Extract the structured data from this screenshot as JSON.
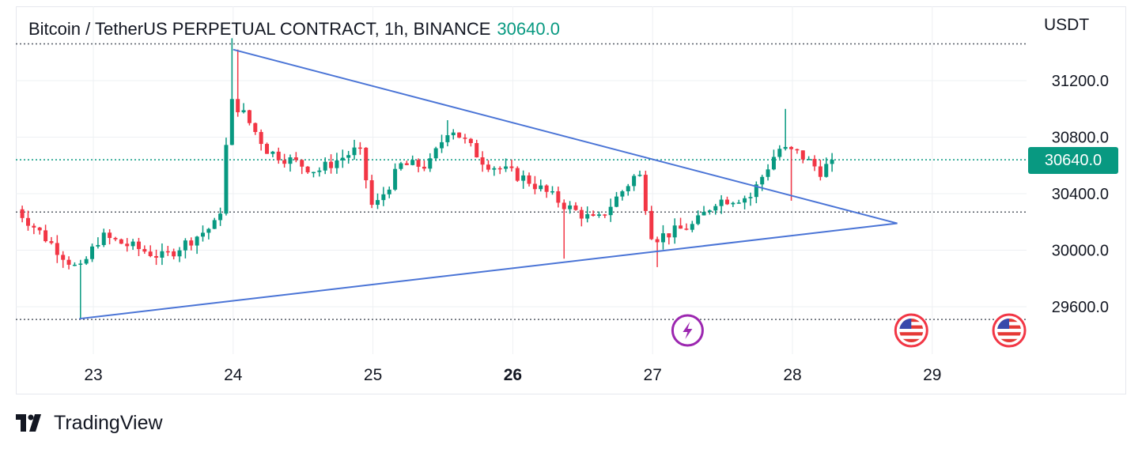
{
  "legend": {
    "title": "Bitcoin / TetherUS PERPETUAL CONTRACT, 1h, BINANCE",
    "last_price": "30640.0"
  },
  "axis": {
    "currency": "USDT",
    "current_price_label": "30640.0"
  },
  "brand": {
    "name": "TradingView"
  },
  "colors": {
    "up": "#089981",
    "down": "#f23645",
    "trendline": "#4a74d6",
    "grid": "#eef0f3",
    "text": "#131722"
  },
  "events": [
    {
      "icon": "lightning-icon",
      "day": 27.25
    },
    {
      "icon": "us-flag-icon",
      "day": 28.85
    },
    {
      "icon": "us-flag-icon",
      "day": 29.55
    }
  ],
  "chart_data": {
    "type": "candlestick",
    "title": "Bitcoin / TetherUS PERPETUAL CONTRACT, 1h, BINANCE",
    "xlabel": "",
    "ylabel": "",
    "x_ticks": [
      "23",
      "24",
      "25",
      "26",
      "27",
      "28",
      "29"
    ],
    "x_tick_days": [
      23,
      24,
      25,
      26,
      27,
      28,
      29
    ],
    "bold_tick": "26",
    "y_ticks": [
      "29600.0",
      "30000.0",
      "30400.0",
      "30800.0",
      "31200.0"
    ],
    "y_tick_values": [
      29600,
      30000,
      30400,
      30800,
      31200
    ],
    "ylim": [
      29420,
      31530
    ],
    "xlim": [
      22.45,
      29.7
    ],
    "grid": true,
    "horizontal_levels": [
      31460,
      30640,
      30270,
      29510
    ],
    "trendlines": [
      {
        "from": [
          24.0,
          31420
        ],
        "to": [
          28.75,
          30190
        ]
      },
      {
        "from": [
          22.9,
          29515
        ],
        "to": [
          28.75,
          30190
        ]
      }
    ],
    "anchors": [
      {
        "day": 22.45,
        "price": 30290
      },
      {
        "day": 22.9,
        "price": 29850
      },
      {
        "day": 23.05,
        "price": 30100
      },
      {
        "day": 23.5,
        "price": 29950
      },
      {
        "day": 23.9,
        "price": 30200
      },
      {
        "day": 23.98,
        "price": 31050
      },
      {
        "day": 24.05,
        "price": 31000
      },
      {
        "day": 24.25,
        "price": 30700
      },
      {
        "day": 24.6,
        "price": 30560
      },
      {
        "day": 24.9,
        "price": 30720
      },
      {
        "day": 25.0,
        "price": 30280
      },
      {
        "day": 25.2,
        "price": 30600
      },
      {
        "day": 25.4,
        "price": 30600
      },
      {
        "day": 25.55,
        "price": 30880
      },
      {
        "day": 25.8,
        "price": 30620
      },
      {
        "day": 26.1,
        "price": 30500
      },
      {
        "day": 26.4,
        "price": 30300
      },
      {
        "day": 26.6,
        "price": 30200
      },
      {
        "day": 26.9,
        "price": 30560
      },
      {
        "day": 27.0,
        "price": 30080
      },
      {
        "day": 27.3,
        "price": 30180
      },
      {
        "day": 27.45,
        "price": 30350
      },
      {
        "day": 27.7,
        "price": 30380
      },
      {
        "day": 27.9,
        "price": 30720
      },
      {
        "day": 28.05,
        "price": 30680
      },
      {
        "day": 28.2,
        "price": 30560
      },
      {
        "day": 28.3,
        "price": 30640
      }
    ],
    "candle_step_days": 0.0416667,
    "volatility": 85
  }
}
